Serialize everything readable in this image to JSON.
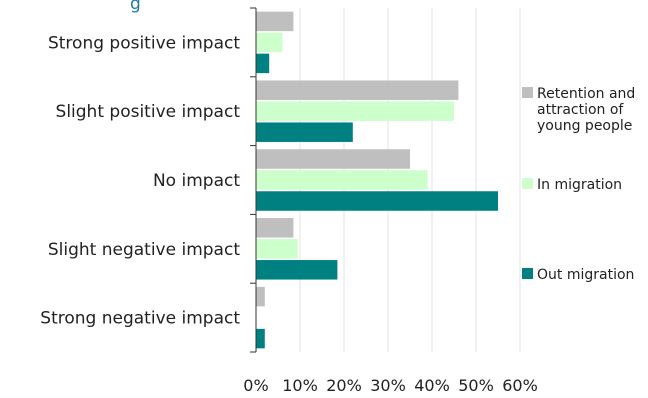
{
  "title_fragment": "g",
  "chart_data": {
    "type": "bar",
    "orientation": "horizontal",
    "categories": [
      "Strong positive impact",
      "Slight positive impact",
      "No impact",
      "Slight negative impact",
      "Strong negative impact"
    ],
    "series": [
      {
        "name": "Retention and attraction of young people",
        "legend_lines": [
          "Retention and",
          "attraction of",
          "young people"
        ],
        "color": "#bfbfbf",
        "values": [
          8.5,
          46,
          35,
          8.5,
          2
        ]
      },
      {
        "name": "In migration",
        "legend_lines": [
          "In migration"
        ],
        "color": "#ccffcc",
        "values": [
          6,
          45,
          39,
          9.5,
          0
        ]
      },
      {
        "name": "Out migration",
        "legend_lines": [
          "Out migration"
        ],
        "color": "#008080",
        "values": [
          3,
          22,
          55,
          18.5,
          2
        ]
      }
    ],
    "xlim": [
      0,
      60
    ],
    "xticks": [
      "0%",
      "10%",
      "20%",
      "30%",
      "40%",
      "50%",
      "60%"
    ],
    "grid": "vertical",
    "legend_position": "right"
  }
}
